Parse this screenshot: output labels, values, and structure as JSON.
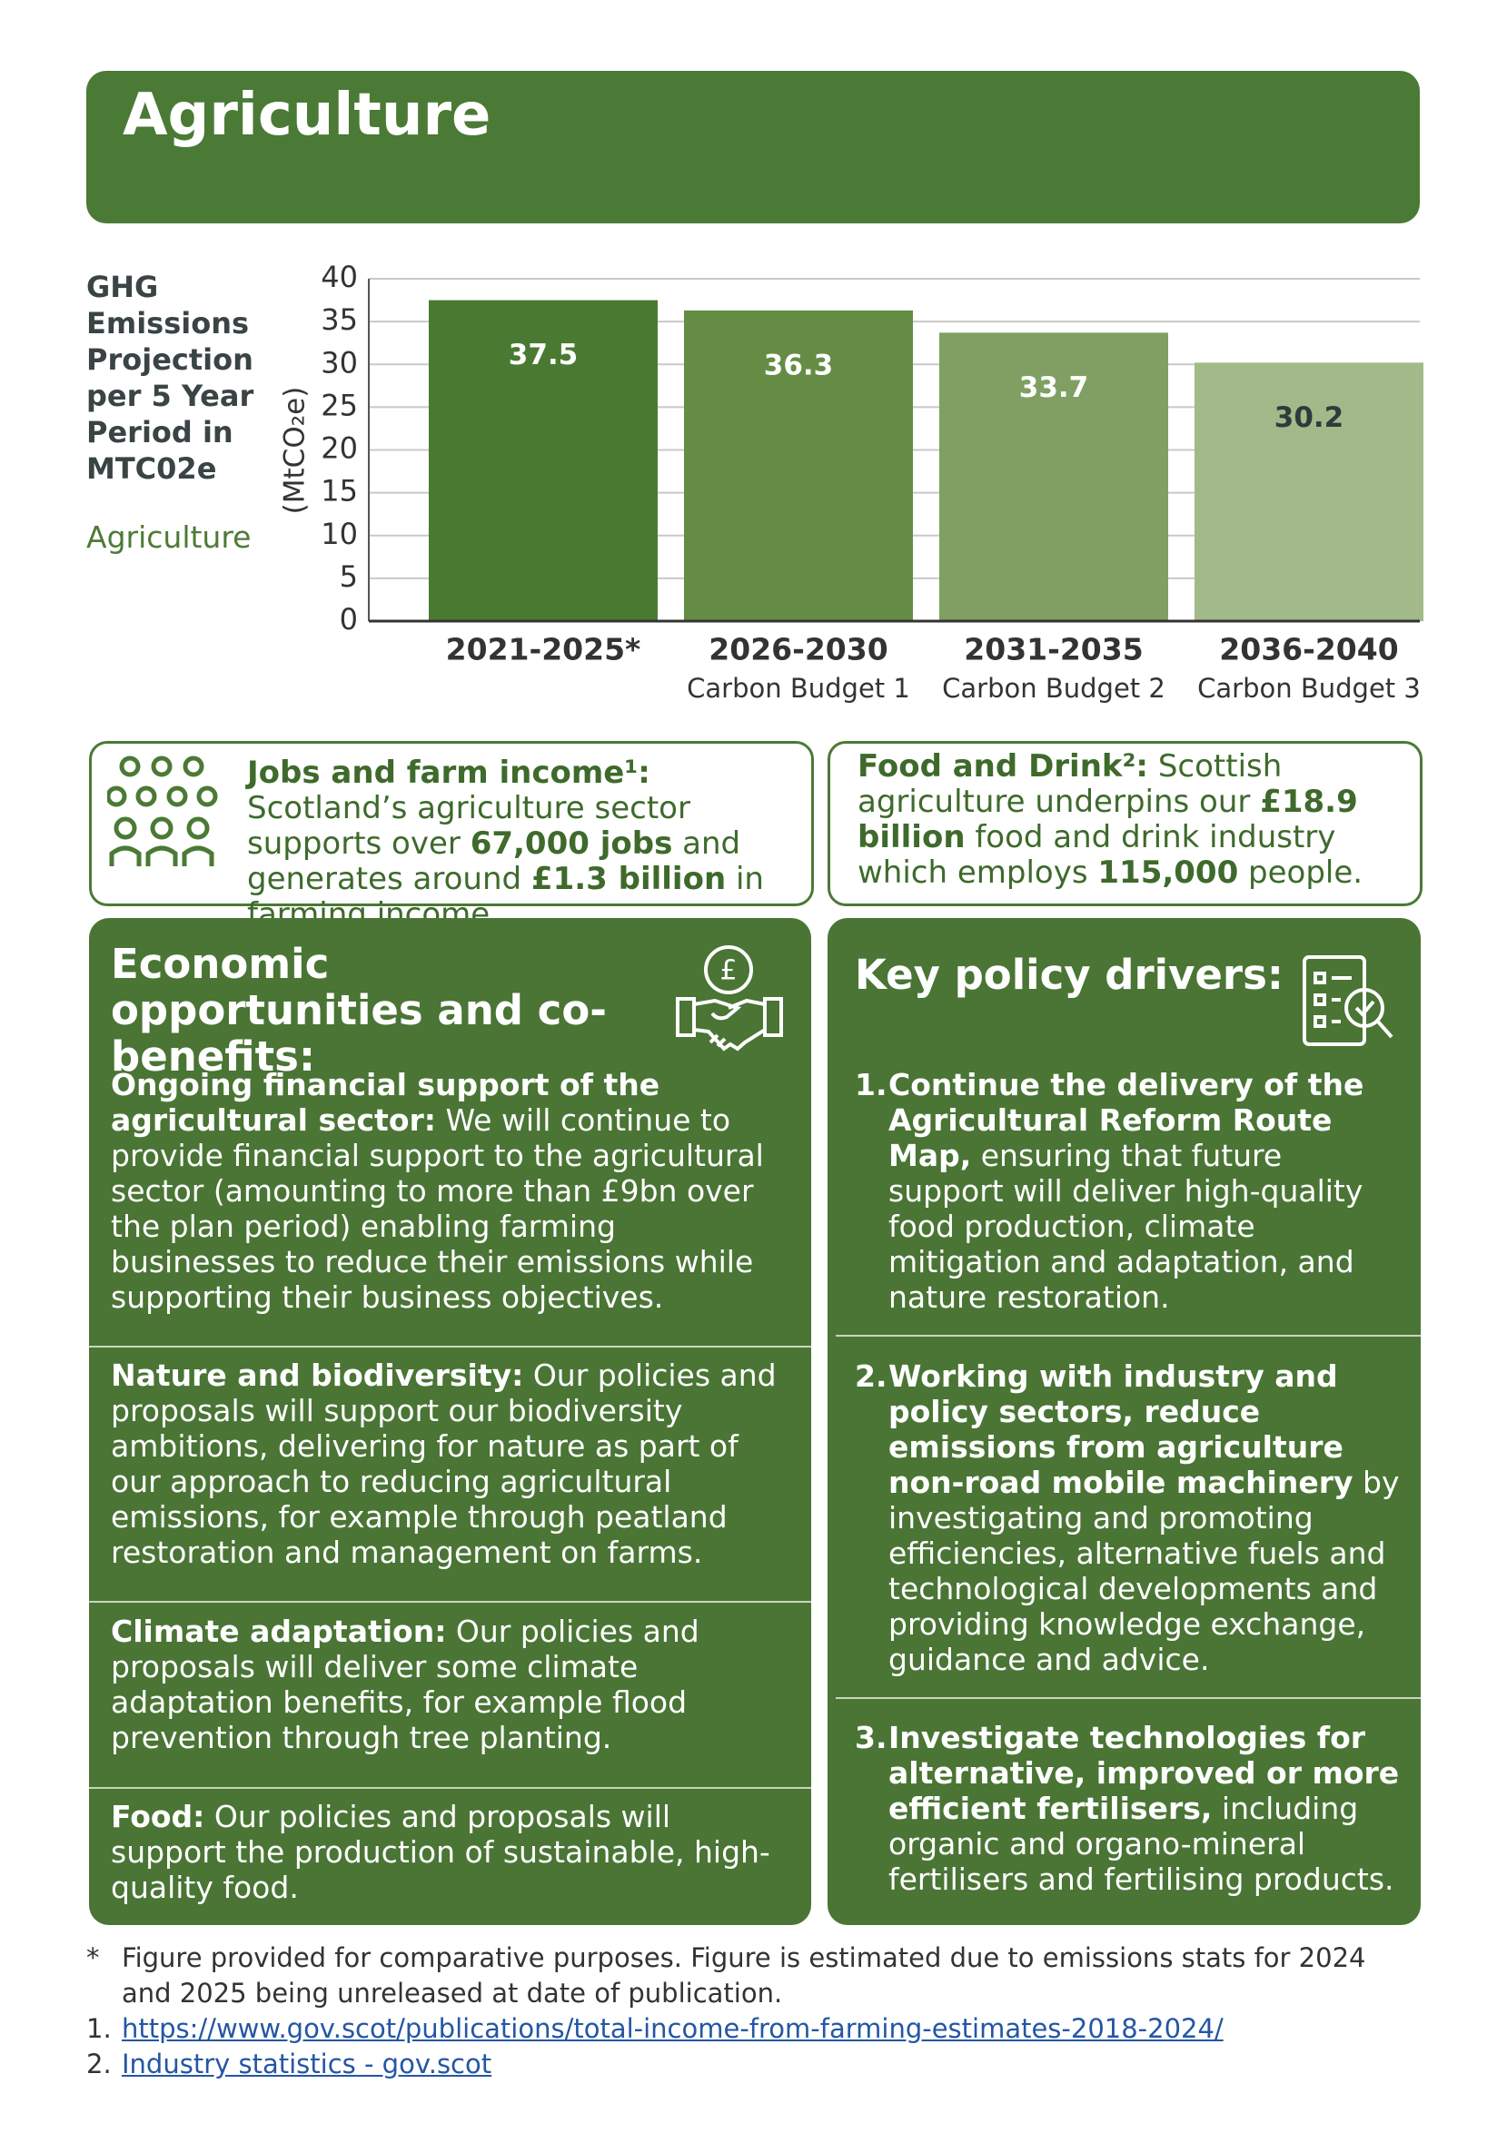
{
  "header": {
    "title": "Agriculture"
  },
  "chart_data": {
    "type": "bar",
    "title": "GHG Emissions Projection per 5 Year Period in MTC02e",
    "subtitle": "Agriculture",
    "y_label": "(MtCO₂e)",
    "categories": [
      "2021-2025*",
      "2026-2030",
      "2031-2035",
      "2036-2040"
    ],
    "category_notes": [
      null,
      "Carbon Budget 1",
      "Carbon Budget 2",
      "Carbon Budget 3"
    ],
    "values": [
      37.5,
      36.3,
      33.7,
      30.2
    ],
    "colors": [
      "#4a7a32",
      "#658c44",
      "#7fa062",
      "#a2b98a"
    ],
    "label_colors": [
      "#ffffff",
      "#ffffff",
      "#ffffff",
      "#2f3b3b"
    ],
    "ylim": [
      0,
      40
    ],
    "yticks": [
      0,
      5,
      10,
      15,
      20,
      25,
      30,
      35,
      40
    ],
    "grid": true
  },
  "info_boxes": [
    {
      "segments": [
        {
          "text": "Jobs and farm income¹:",
          "bold": true
        },
        {
          "text": " Scotland’s agriculture sector supports over ",
          "bold": false
        },
        {
          "text": "67,000 jobs",
          "bold": true
        },
        {
          "text": " and generates around ",
          "bold": false
        },
        {
          "text": "£1.3 billion",
          "bold": true
        },
        {
          "text": " in farming income.",
          "bold": false
        }
      ]
    },
    {
      "segments": [
        {
          "text": "Food and Drink²:",
          "bold": true
        },
        {
          "text": " Scottish agriculture underpins our ",
          "bold": false
        },
        {
          "text": "£18.9 billion",
          "bold": true
        },
        {
          "text": " food and drink industry which employs ",
          "bold": false
        },
        {
          "text": "115,000",
          "bold": true
        },
        {
          "text": " people.",
          "bold": false
        }
      ]
    }
  ],
  "economic_panel": {
    "title": "Economic opportunities and co-benefits:",
    "sections": [
      {
        "segments": [
          {
            "text": "Ongoing financial support of the agricultural sector:",
            "bold": true
          },
          {
            "text": " We will continue to provide financial support to the agricultural sector (amounting to more than £9bn over the plan period) enabling farming businesses to reduce their emissions while supporting their business objectives.",
            "bold": false
          }
        ]
      },
      {
        "segments": [
          {
            "text": "Nature and biodiversity:",
            "bold": true
          },
          {
            "text": " Our policies and proposals will support our biodiversity ambitions, delivering for nature as part of our approach to reducing agricultural emissions, for example through peatland restoration and management on farms.",
            "bold": false
          }
        ]
      },
      {
        "segments": [
          {
            "text": "Climate adaptation:",
            "bold": true
          },
          {
            "text": " Our policies and proposals will deliver some climate adaptation benefits, for example flood prevention through tree planting.",
            "bold": false
          }
        ]
      },
      {
        "segments": [
          {
            "text": "Food:",
            "bold": true
          },
          {
            "text": " Our policies and proposals will support the production of sustainable, high-quality food.",
            "bold": false
          }
        ]
      }
    ]
  },
  "policy_panel": {
    "title": "Key policy drivers:",
    "items": [
      {
        "number": "1.",
        "segments": [
          {
            "text": "Continue the delivery of the Agricultural Reform Route Map,",
            "bold": true
          },
          {
            "text": " ensuring that future support will deliver high-quality food production, climate mitigation and adaptation, and nature restoration.",
            "bold": false
          }
        ]
      },
      {
        "number": "2.",
        "segments": [
          {
            "text": "Working with industry and policy sectors, reduce emissions from agriculture non-road mobile machinery",
            "bold": true
          },
          {
            "text": " by investigating and promoting efficiencies, alternative fuels and technological developments and providing knowledge exchange, guidance and advice.",
            "bold": false
          }
        ]
      },
      {
        "number": "3.",
        "segments": [
          {
            "text": "Investigate technologies for alternative, improved or more efficient fertilisers,",
            "bold": true
          },
          {
            "text": " including organic and organo-mineral fertilisers and fertilising products.",
            "bold": false
          }
        ]
      }
    ]
  },
  "footnotes": [
    {
      "marker": "*",
      "text": "Figure provided for comparative purposes. Figure is estimated due to emissions stats for 2024 and 2025 being unreleased at date of publication."
    },
    {
      "marker": "1.",
      "text": "https://www.gov.scot/publications/total-income-from-farming-estimates-2018-2024/"
    },
    {
      "marker": "2.",
      "text": "Industry statistics - gov.scot"
    }
  ]
}
